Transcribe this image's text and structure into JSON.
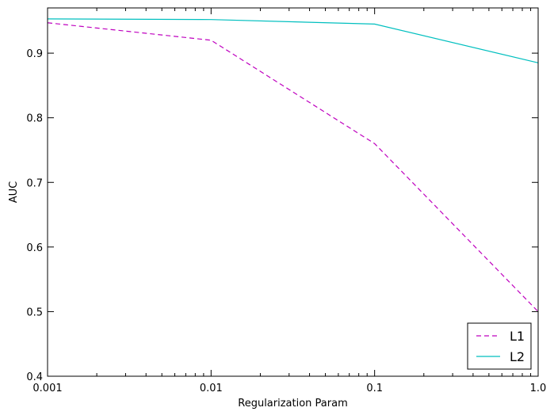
{
  "chart_data": {
    "type": "line",
    "title": "",
    "xlabel": "Regularization Param",
    "ylabel": "AUC",
    "x_scale": "log",
    "x": [
      0.001,
      0.01,
      0.1,
      1.0
    ],
    "xticks": [
      "0.001",
      "0.01",
      "0.1",
      "1.0"
    ],
    "xlim": [
      0.001,
      1.0
    ],
    "ylim": [
      0.4,
      0.97
    ],
    "yticks": [
      "0.4",
      "0.5",
      "0.6",
      "0.7",
      "0.8",
      "0.9"
    ],
    "grid": false,
    "legend_position": "bottom-right",
    "series": [
      {
        "name": "L1",
        "values": [
          0.947,
          0.92,
          0.76,
          0.5
        ],
        "color": "#bf00bf",
        "style": "dashed"
      },
      {
        "name": "L2",
        "values": [
          0.953,
          0.952,
          0.945,
          0.885
        ],
        "color": "#00bfbf",
        "style": "solid"
      }
    ]
  }
}
